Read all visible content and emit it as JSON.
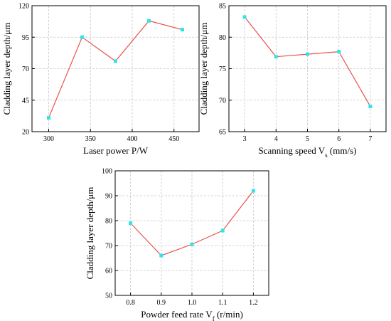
{
  "colors": {
    "line": "#e8534f",
    "marker": "#2fe6e6",
    "grid": "#c8c8c8",
    "axis": "#000000"
  },
  "chart_data": [
    {
      "type": "line",
      "xlabel": "Laser power P/W",
      "ylabel": "Cladding layer depth/μm",
      "x": [
        300,
        340,
        380,
        420,
        460
      ],
      "y": [
        31,
        95,
        76,
        108,
        101
      ],
      "xlim": [
        280,
        480
      ],
      "ylim": [
        20,
        120
      ],
      "xticks": [
        300,
        350,
        400,
        450
      ],
      "xtick_labels": [
        "300",
        "350",
        "400",
        "450"
      ],
      "yticks": [
        20,
        45,
        70,
        95,
        120
      ],
      "ytick_labels": [
        "20",
        "45",
        "70",
        "95",
        "120"
      ],
      "grid": true
    },
    {
      "type": "line",
      "xlabel": "Scanning speed V",
      "xlabel_sub": "s",
      "xlabel_unit": " (mm/s)",
      "ylabel": "Cladding layer depth/μm",
      "x": [
        3,
        4,
        5,
        6,
        7
      ],
      "y": [
        83.2,
        76.9,
        77.3,
        77.7,
        69.0
      ],
      "xlim": [
        2.5,
        7.5
      ],
      "ylim": [
        65,
        85
      ],
      "xticks": [
        3,
        4,
        5,
        6,
        7
      ],
      "xtick_labels": [
        "3",
        "4",
        "5",
        "6",
        "7"
      ],
      "yticks": [
        65,
        70,
        75,
        80,
        85
      ],
      "ytick_labels": [
        "65",
        "70",
        "75",
        "80",
        "85"
      ],
      "grid": true
    },
    {
      "type": "line",
      "xlabel": "Powder feed rate V",
      "xlabel_sub": "f",
      "xlabel_unit": " (r/min)",
      "ylabel": "Cladding layer depth/μm",
      "x": [
        0.8,
        0.9,
        1.0,
        1.1,
        1.2
      ],
      "y": [
        79,
        66,
        70.5,
        76,
        92
      ],
      "xlim": [
        0.75,
        1.25
      ],
      "ylim": [
        50,
        100
      ],
      "xticks": [
        0.8,
        0.9,
        1.0,
        1.1,
        1.2
      ],
      "xtick_labels": [
        "0.8",
        "0.9",
        "1.0",
        "1.1",
        "1.2"
      ],
      "yticks": [
        50,
        60,
        70,
        80,
        90,
        100
      ],
      "ytick_labels": [
        "50",
        "60",
        "70",
        "80",
        "90",
        "100"
      ],
      "grid": true
    }
  ]
}
